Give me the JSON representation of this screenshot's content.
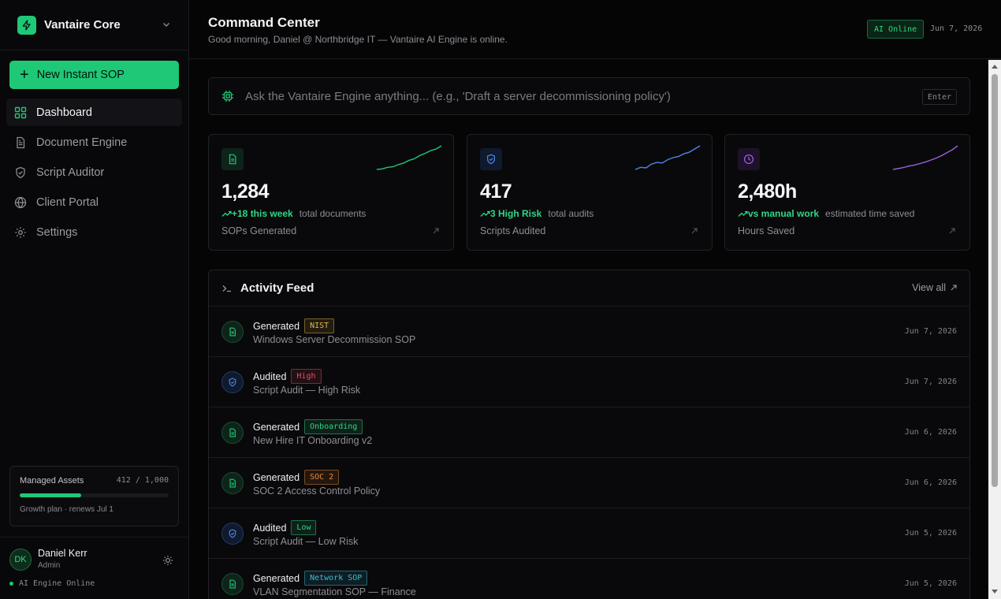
{
  "sidebar": {
    "brand": "Vantaire Core",
    "new_button": "New Instant SOP",
    "nav": [
      {
        "label": "Dashboard",
        "icon": "grid-icon",
        "active": true
      },
      {
        "label": "Document Engine",
        "icon": "document-icon",
        "active": false
      },
      {
        "label": "Script Auditor",
        "icon": "shield-icon",
        "active": false
      },
      {
        "label": "Client Portal",
        "icon": "globe-icon",
        "active": false
      },
      {
        "label": "Settings",
        "icon": "gear-icon",
        "active": false
      }
    ],
    "assets": {
      "label": "Managed Assets",
      "count": "412 / 1,000",
      "fraction": 0.412,
      "plan": "Growth plan · renews Jul 1"
    },
    "user": {
      "initials": "DK",
      "name": "Daniel Kerr",
      "role": "Admin",
      "status": "AI Engine Online"
    }
  },
  "header": {
    "title": "Command Center",
    "subtitle": "Good morning, Daniel @ Northbridge IT — Vantaire AI Engine is online.",
    "badge": "AI Online",
    "date": "Jun 7, 2026"
  },
  "ask": {
    "placeholder": "Ask the Vantaire Engine anything... (e.g., 'Draft a server decommissioning policy')",
    "key": "Enter"
  },
  "stats": [
    {
      "value": "1,284",
      "trend": "+18 this week",
      "trend_rest": "total documents",
      "label": "SOPs Generated",
      "icon": "document-icon",
      "color": "#1ec877",
      "spark": [
        2,
        2.5,
        4,
        4.5,
        6.5,
        8,
        10.5,
        12,
        15,
        17,
        19.5,
        21,
        24
      ]
    },
    {
      "value": "417",
      "trend": "3 High Risk",
      "trend_rest": "total audits",
      "label": "Scripts Audited",
      "icon": "shield-icon",
      "color": "#4f86e8",
      "spark": [
        2,
        4,
        3.5,
        7,
        8.5,
        8,
        11,
        13,
        14,
        16.5,
        18,
        21,
        24
      ]
    },
    {
      "value": "2,480h",
      "trend": "vs manual work",
      "trend_rest": "estimated time saved",
      "label": "Hours Saved",
      "icon": "clock-icon",
      "color": "#a05ee0",
      "spark": [
        1,
        2,
        3,
        4.5,
        5.5,
        7,
        8.5,
        10.5,
        12.5,
        15,
        18,
        21,
        25
      ]
    }
  ],
  "feed": {
    "title": "Activity Feed",
    "view_all": "View all",
    "items": [
      {
        "action": "Generated",
        "tag": "NIST",
        "tag_color": "#e2b44a",
        "desc": "Windows Server Decommission SOP",
        "date": "Jun 7, 2026",
        "icon": "document-icon"
      },
      {
        "action": "Audited",
        "tag": "High",
        "tag_color": "#e0505a",
        "desc": "Script Audit — High Risk",
        "date": "Jun 7, 2026",
        "icon": "shield-icon"
      },
      {
        "action": "Generated",
        "tag": "Onboarding",
        "tag_color": "#2ed787",
        "desc": "New Hire IT Onboarding v2",
        "date": "Jun 6, 2026",
        "icon": "document-icon"
      },
      {
        "action": "Generated",
        "tag": "SOC 2",
        "tag_color": "#e88a3a",
        "desc": "SOC 2 Access Control Policy",
        "date": "Jun 6, 2026",
        "icon": "document-icon"
      },
      {
        "action": "Audited",
        "tag": "Low",
        "tag_color": "#2ed787",
        "desc": "Script Audit — Low Risk",
        "date": "Jun 5, 2026",
        "icon": "shield-icon"
      },
      {
        "action": "Generated",
        "tag": "Network SOP",
        "tag_color": "#3bbfd6",
        "desc": "VLAN Segmentation SOP — Finance",
        "date": "Jun 5, 2026",
        "icon": "document-icon"
      }
    ]
  }
}
